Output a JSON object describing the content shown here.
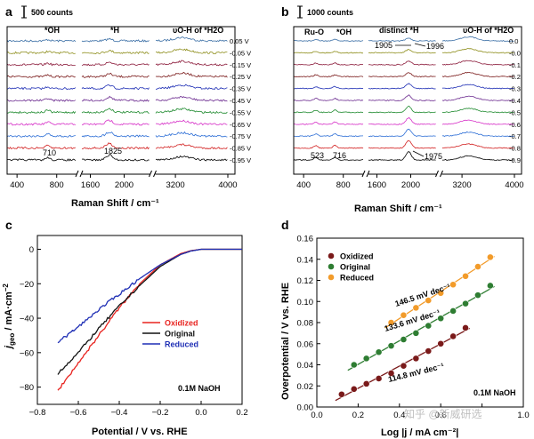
{
  "panels": {
    "a": {
      "label": "a",
      "scale_bar": "500 counts",
      "peak_labels": [
        "*OH",
        "*H",
        "υO-H of *H2O"
      ],
      "annotations": [
        "710",
        "1825"
      ],
      "potentials": [
        "0.05 V",
        "-0.05 V",
        "-0.15 V",
        "-0.25 V",
        "-0.35 V",
        "-0.45 V",
        "-0.55 V",
        "-0.65 V",
        "-0.75 V",
        "-0.85 V",
        "-0.95 V"
      ],
      "x_ticks": [
        "400",
        "800",
        "1600",
        "2000",
        "3200",
        "4000"
      ],
      "xlabel": "Raman Shift / cm⁻¹"
    },
    "b": {
      "label": "b",
      "scale_bar": "1000 counts",
      "peak_labels": [
        "Ru-O",
        "*OH",
        "distinct *H",
        "υO-H of *H2O"
      ],
      "annotations": [
        "1905",
        "1996",
        "523",
        "716",
        "1975"
      ],
      "potentials": [
        "0.0",
        "-0.0",
        "-0.1",
        "-0.2",
        "-0.3",
        "-0.4",
        "-0.5",
        "-0.6",
        "-0.7",
        "-0.8",
        "-0.9"
      ],
      "x_ticks": [
        "400",
        "800",
        "1600",
        "2000",
        "3200",
        "4000"
      ],
      "xlabel": "Raman Shift / cm⁻¹"
    },
    "c": {
      "label": "c",
      "ylabel": "j_geo / mA·cm⁻²",
      "xlabel": "Potential / V vs. RHE",
      "electrolyte": "0.1M NaOH",
      "x_ticks": [
        "−0.8",
        "−0.6",
        "−0.4",
        "−0.2",
        "0.0",
        "0.2"
      ],
      "y_ticks": [
        "0",
        "−20",
        "−40",
        "−60",
        "−80"
      ],
      "legend": [
        "Oxidized",
        "Original",
        "Reduced"
      ]
    },
    "d": {
      "label": "d",
      "ylabel": "Overpotential / V vs. RHE",
      "xlabel": "Log |j / mA cm⁻²|",
      "electrolyte": "0.1M NaOH",
      "x_ticks": [
        "0.0",
        "0.2",
        "0.4",
        "0.6",
        "0.8",
        "1.0"
      ],
      "y_ticks": [
        "0.00",
        "0.02",
        "0.04",
        "0.06",
        "0.08",
        "0.10",
        "0.12",
        "0.14",
        "0.16"
      ],
      "legend": [
        "Oxidized",
        "Original",
        "Reduced"
      ],
      "slopes": [
        "146.5 mV dec⁻¹",
        "133.6 mV dec⁻¹",
        "114.8 mV dec⁻¹"
      ],
      "watermark": "知乎 @新威研选"
    }
  },
  "chart_data": [
    {
      "type": "line",
      "panel": "a",
      "title": "",
      "xlabel": "Raman Shift / cm⁻¹",
      "ylabel": "",
      "x_segments": [
        [
          300,
          1000
        ],
        [
          1500,
          2300
        ],
        [
          2900,
          4000
        ]
      ],
      "series_count": 11,
      "peaks": [
        {
          "x": 710,
          "label": "*OH"
        },
        {
          "x": 1825,
          "label": "*H"
        },
        {
          "x": 3300,
          "label": "υO-H of *H2O"
        }
      ]
    },
    {
      "type": "line",
      "panel": "b",
      "title": "",
      "xlabel": "Raman Shift / cm⁻¹",
      "ylabel": "",
      "x_segments": [
        [
          300,
          1000
        ],
        [
          1500,
          2300
        ],
        [
          2900,
          4000
        ]
      ],
      "series_count": 11,
      "peaks": [
        {
          "x": 523,
          "label": "Ru-O"
        },
        {
          "x": 716,
          "label": "*OH"
        },
        {
          "x": 1975,
          "label": "distinct *H"
        },
        {
          "x": 3300,
          "label": "υO-H of *H2O"
        }
      ]
    },
    {
      "type": "line",
      "panel": "c",
      "title": "",
      "xlabel": "Potential / V vs. RHE",
      "ylabel": "j_geo / mA·cm⁻²",
      "xlim": [
        -0.8,
        0.2
      ],
      "ylim": [
        -90,
        8
      ],
      "series": [
        {
          "name": "Oxidized",
          "color": "#e8231f",
          "x": [
            -0.7,
            -0.6,
            -0.5,
            -0.4,
            -0.3,
            -0.2,
            -0.1,
            -0.05,
            0.0,
            0.2
          ],
          "values": [
            -82,
            -66,
            -50,
            -34,
            -20,
            -9,
            -2.5,
            -0.8,
            0,
            0
          ]
        },
        {
          "name": "Original",
          "color": "#111111",
          "x": [
            -0.7,
            -0.6,
            -0.5,
            -0.4,
            -0.3,
            -0.2,
            -0.1,
            -0.05,
            0.0,
            0.2
          ],
          "values": [
            -72,
            -60,
            -46,
            -33,
            -21,
            -10,
            -3,
            -1,
            0,
            0
          ]
        },
        {
          "name": "Reduced",
          "color": "#1f2fb5",
          "x": [
            -0.7,
            -0.6,
            -0.5,
            -0.4,
            -0.3,
            -0.2,
            -0.1,
            -0.05,
            0.0,
            0.2
          ],
          "values": [
            -54,
            -45,
            -35,
            -26,
            -17,
            -9,
            -3,
            -1,
            0,
            0
          ]
        }
      ]
    },
    {
      "type": "scatter",
      "panel": "d",
      "title": "",
      "xlabel": "Log |j / mA cm⁻²|",
      "ylabel": "Overpotential / V vs. RHE",
      "xlim": [
        0.0,
        1.0
      ],
      "ylim": [
        0.0,
        0.16
      ],
      "series": [
        {
          "name": "Oxidized",
          "color": "#7a1a1a",
          "slope": "114.8 mV dec⁻¹",
          "x": [
            0.12,
            0.18,
            0.24,
            0.3,
            0.36,
            0.42,
            0.48,
            0.54,
            0.6,
            0.66,
            0.72
          ],
          "values": [
            0.012,
            0.017,
            0.022,
            0.027,
            0.032,
            0.039,
            0.046,
            0.053,
            0.06,
            0.067,
            0.075
          ]
        },
        {
          "name": "Original",
          "color": "#2e7d32",
          "slope": "133.6 mV dec⁻¹",
          "x": [
            0.18,
            0.24,
            0.3,
            0.36,
            0.42,
            0.48,
            0.54,
            0.6,
            0.66,
            0.72,
            0.78,
            0.84
          ],
          "values": [
            0.04,
            0.046,
            0.052,
            0.058,
            0.064,
            0.07,
            0.077,
            0.084,
            0.091,
            0.098,
            0.106,
            0.115
          ]
        },
        {
          "name": "Reduced",
          "color": "#f29b2a",
          "slope": "146.5 mV dec⁻¹",
          "x": [
            0.36,
            0.42,
            0.48,
            0.54,
            0.6,
            0.66,
            0.72,
            0.78,
            0.84
          ],
          "values": [
            0.08,
            0.087,
            0.094,
            0.101,
            0.108,
            0.116,
            0.124,
            0.133,
            0.142
          ]
        }
      ]
    }
  ]
}
